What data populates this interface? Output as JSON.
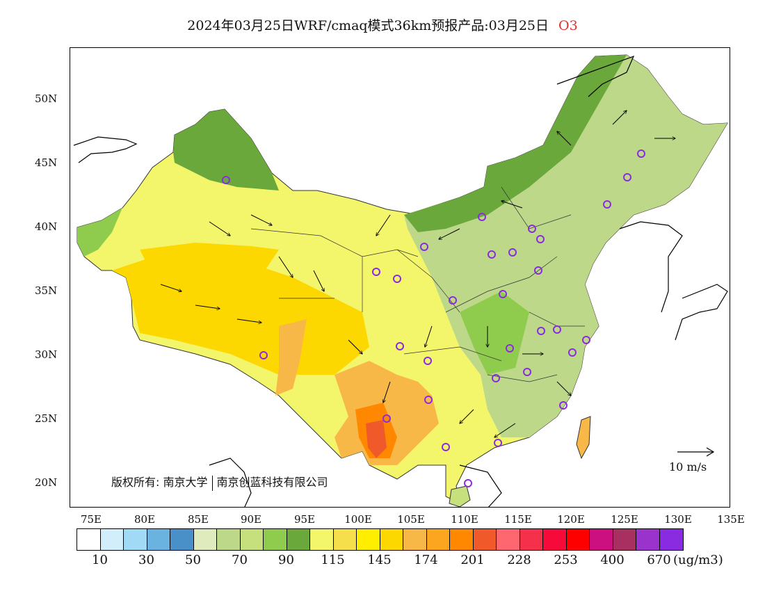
{
  "title": {
    "text": "2024年03月25日WRF/cmaq模式36km预报产品:03月25日",
    "pollutant": "O3"
  },
  "map": {
    "lat_labels": [
      "50N",
      "45N",
      "40N",
      "35N",
      "30N",
      "25N",
      "20N"
    ],
    "lon_labels": [
      "75E",
      "80E",
      "85E",
      "90E",
      "95E",
      "100E",
      "105E",
      "110E",
      "115E",
      "120E",
      "125E",
      "130E",
      "135E"
    ],
    "copyright": {
      "prefix": "版权所有:",
      "org1": "南京大学",
      "org2": "南京创蓝科技有限公司"
    },
    "wind_scale": {
      "label": "10 m/s"
    }
  },
  "legend": {
    "colors": [
      "#ffffff",
      "#d2eefa",
      "#a0daf5",
      "#6ab2e0",
      "#4a90c8",
      "#dfeabd",
      "#bcd888",
      "#c5e07c",
      "#8fcc4e",
      "#6aa83c",
      "#f3f56a",
      "#f5e04c",
      "#ffee00",
      "#fcd800",
      "#f8b848",
      "#fca620",
      "#ff8800",
      "#f05a2a",
      "#fe6670",
      "#f5304a",
      "#f50a3a",
      "#ff0000",
      "#cc1080",
      "#a83060",
      "#9933cc",
      "#8a2be2"
    ],
    "ticks": [
      "10",
      "30",
      "50",
      "70",
      "90",
      "115",
      "145",
      "174",
      "201",
      "228",
      "253",
      "400",
      "670"
    ],
    "unit": "(ug/m3)"
  }
}
